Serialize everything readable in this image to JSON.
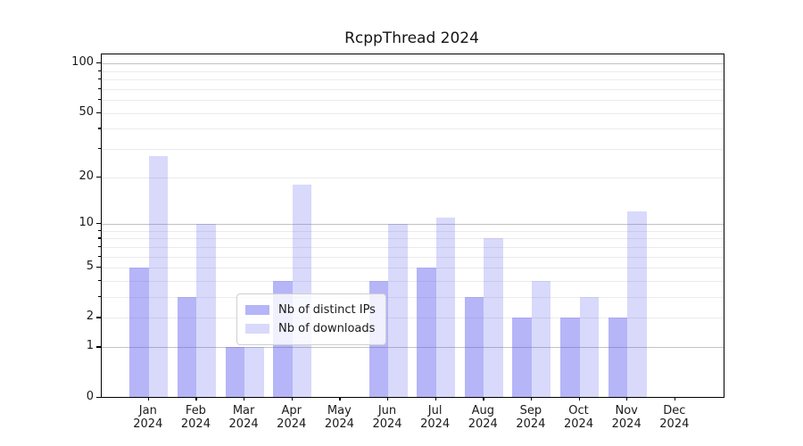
{
  "title": "RcppThread 2024",
  "chart_data": {
    "type": "bar",
    "title": "RcppThread 2024",
    "categories": [
      "Jan",
      "Feb",
      "Mar",
      "Apr",
      "May",
      "Jun",
      "Jul",
      "Aug",
      "Sep",
      "Oct",
      "Nov",
      "Dec"
    ],
    "year_label": "2024",
    "series": [
      {
        "name": "Nb of distinct IPs",
        "color": "rgba(90,90,240,0.45)",
        "base_hex": "#5a5af0",
        "values": [
          5,
          3,
          1,
          4,
          0,
          4,
          5,
          3,
          2,
          2,
          2,
          0
        ]
      },
      {
        "name": "Nb of downloads",
        "color": "rgba(90,90,240,0.23)",
        "base_hex": "#5a5af0",
        "values": [
          27,
          10,
          1,
          18,
          0,
          10,
          11,
          8,
          4,
          3,
          12,
          0
        ]
      }
    ],
    "ylabel_ticks": [
      0,
      1,
      2,
      5,
      10,
      20,
      50,
      100
    ],
    "gridlines_major": [
      1,
      10,
      100
    ],
    "gridlines_minor": [
      2,
      3,
      4,
      5,
      6,
      7,
      8,
      9,
      20,
      30,
      40,
      50,
      60,
      70,
      80,
      90
    ],
    "scale": "log10(1+v)",
    "ylim": [
      0,
      110
    ],
    "legend_position": "lower-center",
    "grid": "on"
  },
  "colors": {
    "axis": "#000000",
    "grid_minor": "#ebebeb",
    "grid_major": "#c2c2c2",
    "text": "#1a1a1a",
    "background": "#ffffff"
  }
}
